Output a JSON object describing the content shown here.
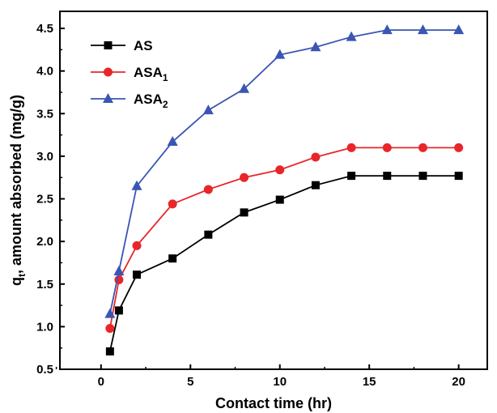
{
  "chart_data": {
    "type": "line",
    "xlabel": "Contact time (hr)",
    "ylabel": {
      "base": "q",
      "sub": "t",
      "rest": ", amount absorbed (mg/g)"
    },
    "xlim": [
      -2.3,
      21.6
    ],
    "ylim": [
      0.5,
      4.7
    ],
    "xticks": [
      0,
      5,
      10,
      15,
      20
    ],
    "xtick_labels": [
      "0",
      "5",
      "10",
      "15",
      "20"
    ],
    "yticks": [
      0.5,
      1.0,
      1.5,
      2.0,
      2.5,
      3.0,
      3.5,
      4.0,
      4.5
    ],
    "ytick_labels": [
      "0.5",
      "1.0",
      "1.5",
      "2.0",
      "2.5",
      "3.0",
      "3.5",
      "4.0",
      "4.5"
    ],
    "grid": false,
    "legend_position": "top-left",
    "x": [
      0.5,
      1,
      2,
      4,
      6,
      8,
      10,
      12,
      14,
      16,
      18,
      20
    ],
    "series": [
      {
        "name": "AS",
        "label_base": "AS",
        "label_sub": "",
        "color": "#000000",
        "marker": "square",
        "values": [
          0.71,
          1.19,
          1.61,
          1.8,
          2.08,
          2.34,
          2.49,
          2.66,
          2.77,
          2.77,
          2.77,
          2.77
        ]
      },
      {
        "name": "ASA1",
        "label_base": "ASA",
        "label_sub": "1",
        "color": "#e8262a",
        "marker": "circle",
        "values": [
          0.98,
          1.55,
          1.95,
          2.44,
          2.61,
          2.75,
          2.84,
          2.99,
          3.1,
          3.1,
          3.1,
          3.1
        ]
      },
      {
        "name": "ASA2",
        "label_base": "ASA",
        "label_sub": "2",
        "color": "#3a55b4",
        "marker": "triangle",
        "values": [
          1.15,
          1.65,
          2.65,
          3.17,
          3.54,
          3.79,
          4.19,
          4.28,
          4.4,
          4.48,
          4.48,
          4.48
        ]
      }
    ]
  }
}
